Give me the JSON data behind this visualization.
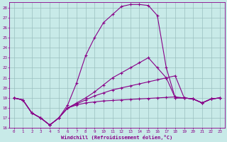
{
  "xlabel": "Windchill (Refroidissement éolien,°C)",
  "bg_color": "#c8eae8",
  "grid_color": "#9bbfbf",
  "line_color": "#880088",
  "xlim": [
    0,
    23
  ],
  "ylim": [
    16,
    28.5
  ],
  "xticks": [
    0,
    1,
    2,
    3,
    4,
    5,
    6,
    7,
    8,
    9,
    10,
    11,
    12,
    13,
    14,
    15,
    16,
    17,
    18,
    19,
    20,
    21,
    22,
    23
  ],
  "yticks": [
    16,
    17,
    18,
    19,
    20,
    21,
    22,
    23,
    24,
    25,
    26,
    27,
    28
  ],
  "curve1_x": [
    0,
    1,
    2,
    3,
    4,
    5,
    6,
    7,
    8,
    9,
    10,
    11,
    12,
    13,
    14,
    15,
    16,
    17,
    18,
    19,
    20,
    21,
    22,
    23
  ],
  "curve1_y": [
    19.0,
    18.8,
    17.5,
    17.0,
    16.3,
    17.0,
    18.3,
    20.5,
    23.2,
    25.0,
    26.5,
    27.3,
    28.1,
    28.3,
    28.3,
    28.2,
    27.2,
    22.0,
    19.0,
    19.0,
    18.9,
    18.5,
    18.9,
    19.0
  ],
  "curve2_x": [
    0,
    1,
    2,
    3,
    4,
    5,
    6,
    7,
    8,
    9,
    10,
    11,
    12,
    13,
    14,
    15,
    16,
    17,
    18,
    19,
    20,
    21,
    22,
    23
  ],
  "curve2_y": [
    19.0,
    18.8,
    17.5,
    17.0,
    16.3,
    17.0,
    18.0,
    18.3,
    18.5,
    18.6,
    18.7,
    18.75,
    18.8,
    18.85,
    18.9,
    18.95,
    19.0,
    19.05,
    19.1,
    19.0,
    18.9,
    18.5,
    18.9,
    19.0
  ],
  "curve3_x": [
    0,
    1,
    2,
    3,
    4,
    5,
    6,
    7,
    8,
    9,
    10,
    11,
    12,
    13,
    14,
    15,
    16,
    17,
    18,
    19,
    20,
    21,
    22,
    23
  ],
  "curve3_y": [
    19.0,
    18.8,
    17.5,
    17.0,
    16.3,
    17.0,
    18.0,
    18.4,
    18.8,
    19.2,
    19.5,
    19.8,
    20.0,
    20.2,
    20.4,
    20.6,
    20.8,
    21.0,
    21.2,
    19.0,
    18.9,
    18.5,
    18.9,
    19.0
  ],
  "curve4_x": [
    0,
    1,
    2,
    3,
    4,
    5,
    6,
    7,
    8,
    9,
    10,
    11,
    12,
    13,
    14,
    15,
    16,
    17,
    18,
    19,
    20,
    21,
    22,
    23
  ],
  "curve4_y": [
    19.0,
    18.8,
    17.5,
    17.0,
    16.3,
    17.0,
    18.0,
    18.5,
    19.0,
    19.6,
    20.3,
    21.0,
    21.5,
    22.0,
    22.5,
    23.0,
    22.0,
    21.0,
    19.0,
    19.0,
    18.9,
    18.5,
    18.9,
    19.0
  ]
}
